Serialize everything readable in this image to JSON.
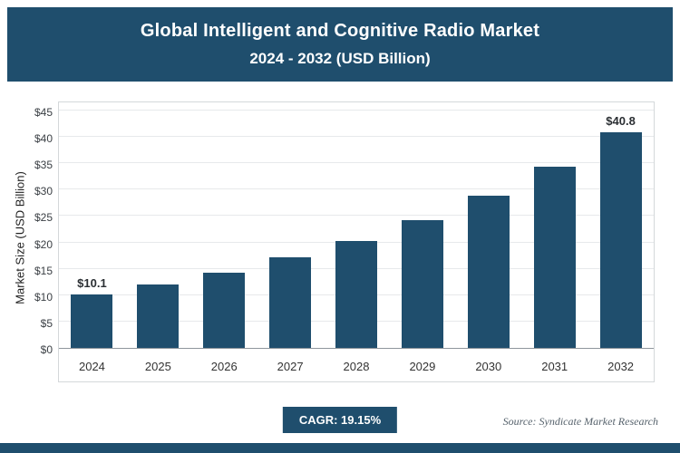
{
  "header": {
    "title": "Global Intelligent and Cognitive Radio Market",
    "subtitle": "2024 - 2032 (USD Billion)"
  },
  "chart_data": {
    "type": "bar",
    "title": "Global Intelligent and Cognitive Radio Market 2024 - 2032 (USD Billion)",
    "categories": [
      "2024",
      "2025",
      "2026",
      "2027",
      "2028",
      "2029",
      "2030",
      "2031",
      "2032"
    ],
    "values": [
      10.1,
      12.0,
      14.3,
      17.1,
      20.3,
      24.2,
      28.9,
      34.4,
      40.8
    ],
    "bar_labels": [
      "$10.1",
      "",
      "",
      "",
      "",
      "",
      "",
      "",
      "$40.8"
    ],
    "xlabel": "",
    "ylabel": "Market Size (USD Billion)",
    "ylim": [
      0,
      45
    ],
    "ytick_step": 5,
    "ytick_prefix": "$",
    "bar_color": "#1f4e6d",
    "grid": true,
    "legend": "none"
  },
  "footer": {
    "cagr_label": "CAGR: 19.15%",
    "source": "Source: Syndicate Market Research"
  },
  "colors": {
    "accent_navy": "#1f4e6d",
    "gridline": "#e7e9eb",
    "panel_border": "#d4d8da"
  }
}
